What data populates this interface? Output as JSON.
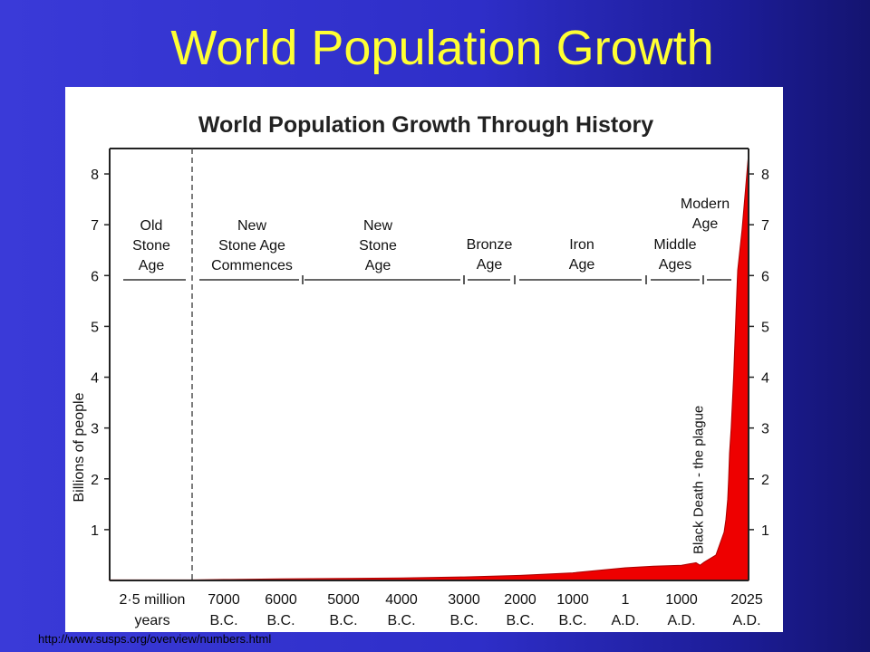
{
  "slide": {
    "title": "World Population Growth",
    "source_url": "http://www.susps.org/overview/numbers.html"
  },
  "colors": {
    "background": "#2e2ec8",
    "title": "#ffff33",
    "area_fill": "#ee0000"
  },
  "chart_data": {
    "type": "area",
    "title": "World Population Growth Through History",
    "ylabel": "Billions of people",
    "xlabel": "",
    "ylim": [
      0,
      8.5
    ],
    "y_ticks": [
      1,
      2,
      3,
      4,
      5,
      6,
      7,
      8
    ],
    "y_axis_both_sides": true,
    "grid": false,
    "x_categories": [
      [
        "2·5 million",
        "years"
      ],
      [
        "7000",
        "B.C."
      ],
      [
        "6000",
        "B.C."
      ],
      [
        "5000",
        "B.C."
      ],
      [
        "4000",
        "B.C."
      ],
      [
        "3000",
        "B.C."
      ],
      [
        "2000",
        "B.C."
      ],
      [
        "1000",
        "B.C."
      ],
      [
        "1",
        "A.D."
      ],
      [
        "1000",
        "A.D."
      ],
      [
        "2025",
        "A.D."
      ]
    ],
    "series": [
      {
        "x": [
          -2500000,
          -8000,
          -7000,
          -6000,
          -5000,
          -4000,
          -3000,
          -2000,
          -1000,
          1,
          500,
          1000,
          1300,
          1350,
          1400,
          1600,
          1800,
          1850,
          1900,
          1925,
          1950,
          1960,
          1975,
          1990,
          2000,
          2010,
          2025
        ],
        "y": [
          0.01,
          0.01,
          0.02,
          0.03,
          0.04,
          0.05,
          0.07,
          0.1,
          0.15,
          0.25,
          0.28,
          0.3,
          0.35,
          0.3,
          0.36,
          0.5,
          0.95,
          1.2,
          1.6,
          2.0,
          2.5,
          3.0,
          4.0,
          5.3,
          6.1,
          6.9,
          8.4
        ]
      }
    ],
    "eras": [
      {
        "name": [
          "Old",
          "Stone",
          "Age"
        ]
      },
      {
        "name": [
          "New",
          "Stone Age",
          "Commences"
        ]
      },
      {
        "name": [
          "New",
          "Stone",
          "Age"
        ]
      },
      {
        "name": [
          "Bronze",
          "Age"
        ]
      },
      {
        "name": [
          "Iron",
          "Age"
        ]
      },
      {
        "name": [
          "Middle",
          "Ages"
        ]
      },
      {
        "name": [
          "Modern",
          "Age"
        ]
      }
    ],
    "annotations": [
      {
        "text": "Black Death - the plague",
        "x": 1350
      }
    ]
  }
}
